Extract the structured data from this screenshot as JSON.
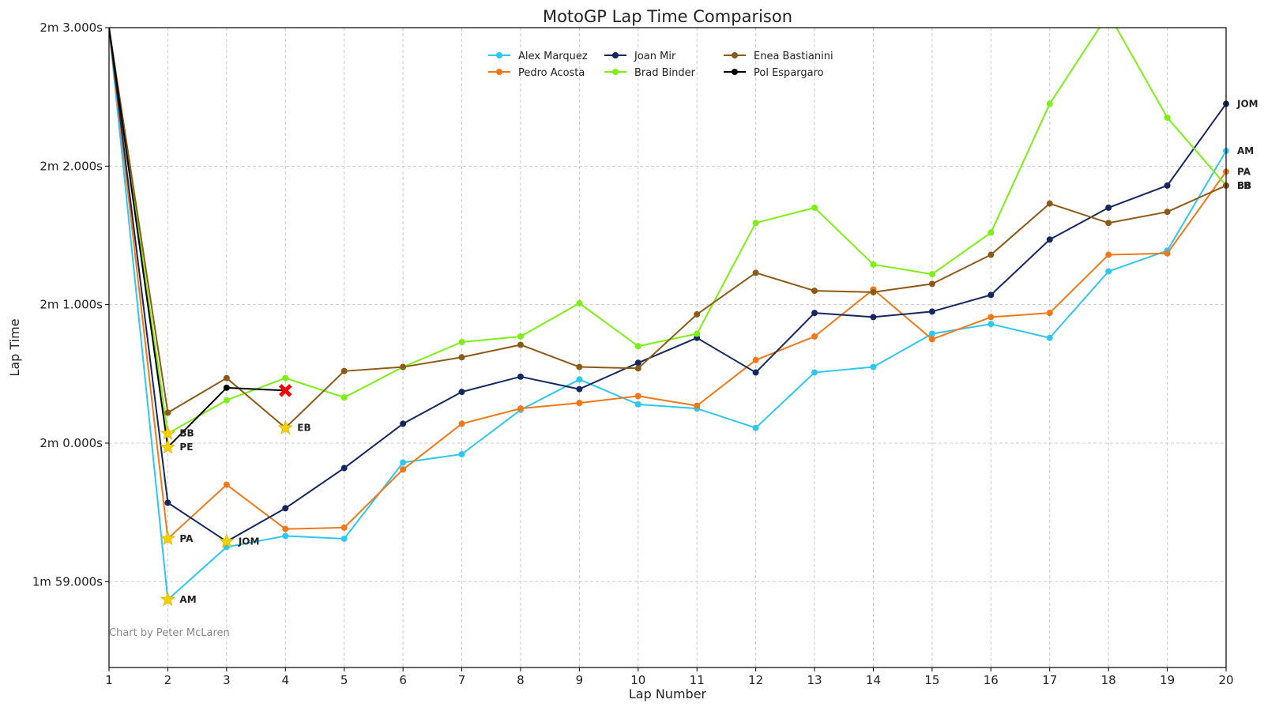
{
  "chart_data": {
    "type": "line",
    "title": "MotoGP Lap Time Comparison",
    "xlabel": "Lap Number",
    "ylabel": "Lap Time",
    "xlim": [
      1,
      20
    ],
    "ylim": [
      118.38,
      123.0
    ],
    "x_ticks": [
      1,
      2,
      3,
      4,
      5,
      6,
      7,
      8,
      9,
      10,
      11,
      12,
      13,
      14,
      15,
      16,
      17,
      18,
      19,
      20
    ],
    "y_ticks": [
      {
        "value": 119.0,
        "label": "1m 59.000s"
      },
      {
        "value": 120.0,
        "label": "2m 0.000s"
      },
      {
        "value": 121.0,
        "label": "2m 1.000s"
      },
      {
        "value": 122.0,
        "label": "2m 2.000s"
      },
      {
        "value": 123.0,
        "label": "2m 3.000s"
      }
    ],
    "grid": true,
    "legend_position": "top-center",
    "credit": "Chart by Peter McLaren",
    "series": [
      {
        "name": "Alex Marquez",
        "abbr": "AM",
        "color": "#2ec7f0",
        "x": [
          1,
          2,
          3,
          4,
          5,
          6,
          7,
          8,
          9,
          10,
          11,
          12,
          13,
          14,
          15,
          16,
          17,
          18,
          19,
          20
        ],
        "values": [
          123.0,
          118.87,
          119.25,
          119.33,
          119.31,
          119.86,
          119.92,
          120.24,
          120.46,
          120.28,
          120.25,
          120.11,
          120.51,
          120.55,
          120.79,
          120.86,
          120.76,
          121.24,
          121.39,
          122.11
        ],
        "best_lap": 2,
        "best_value": 118.87,
        "end_label": "AM"
      },
      {
        "name": "Pedro Acosta",
        "abbr": "PA",
        "color": "#f07818",
        "x": [
          1,
          2,
          3,
          4,
          5,
          6,
          7,
          8,
          9,
          10,
          11,
          12,
          13,
          14,
          15,
          16,
          17,
          18,
          19,
          20
        ],
        "values": [
          123.0,
          119.31,
          119.7,
          119.38,
          119.39,
          119.81,
          120.14,
          120.25,
          120.29,
          120.34,
          120.27,
          120.6,
          120.77,
          121.11,
          120.75,
          120.91,
          120.94,
          121.36,
          121.37,
          121.96
        ],
        "best_lap": 2,
        "best_value": 119.31,
        "end_label": "PA"
      },
      {
        "name": "Joan Mir",
        "abbr": "JOM",
        "color": "#14285f",
        "x": [
          1,
          2,
          3,
          4,
          5,
          6,
          7,
          8,
          9,
          10,
          11,
          12,
          13,
          14,
          15,
          16,
          17,
          18,
          19,
          20
        ],
        "values": [
          123.0,
          119.57,
          119.29,
          119.53,
          119.82,
          120.14,
          120.37,
          120.48,
          120.39,
          120.58,
          120.76,
          120.51,
          120.94,
          120.91,
          120.95,
          121.07,
          121.47,
          121.7,
          121.86,
          122.45
        ],
        "best_lap": 3,
        "best_value": 119.29,
        "end_label": "JOM"
      },
      {
        "name": "Brad Binder",
        "abbr": "BB",
        "color": "#7cf012",
        "x": [
          1,
          2,
          3,
          4,
          5,
          6,
          7,
          8,
          9,
          10,
          11,
          12,
          13,
          14,
          15,
          16,
          17,
          18,
          19,
          20
        ],
        "values": [
          123.0,
          120.07,
          120.31,
          120.47,
          120.33,
          120.55,
          120.73,
          120.77,
          121.01,
          120.7,
          120.79,
          121.59,
          121.7,
          121.29,
          121.22,
          121.52,
          122.45,
          123.1,
          122.35,
          121.86
        ],
        "best_lap": 2,
        "best_value": 120.07,
        "end_label": "BB"
      },
      {
        "name": "Enea Bastianini",
        "abbr": "EB",
        "color": "#8c5a16",
        "x": [
          1,
          2,
          3,
          4,
          5,
          6,
          7,
          8,
          9,
          10,
          11,
          12,
          13,
          14,
          15,
          16,
          17,
          18,
          19,
          20
        ],
        "values": [
          123.0,
          120.22,
          120.47,
          120.11,
          120.52,
          120.55,
          120.62,
          120.71,
          120.55,
          120.54,
          120.93,
          121.23,
          121.1,
          121.09,
          121.15,
          121.36,
          121.73,
          121.59,
          121.67,
          121.86
        ],
        "best_lap": 4,
        "best_value": 120.11,
        "end_label": "EB"
      },
      {
        "name": "Pol Espargaro",
        "abbr": "PE",
        "color": "#000000",
        "x": [
          1,
          2,
          3,
          4
        ],
        "values": [
          123.0,
          119.97,
          120.4,
          120.38
        ],
        "best_lap": 2,
        "best_value": 119.97,
        "end_label": "",
        "crash_lap": 4
      }
    ]
  }
}
